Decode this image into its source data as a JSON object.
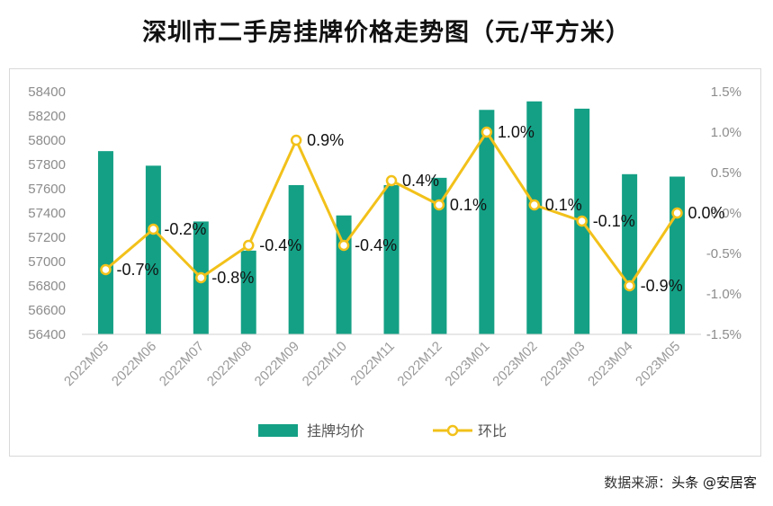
{
  "title": "深圳市二手房挂牌价格走势图（元/平方米）",
  "source": {
    "label": "数据来源：",
    "name": "头条 @安居客"
  },
  "chart_data": {
    "type": "bar+line",
    "categories": [
      "2022M05",
      "2022M06",
      "2022M07",
      "2022M08",
      "2022M09",
      "2022M10",
      "2022M11",
      "2022M12",
      "2023M01",
      "2023M02",
      "2023M03",
      "2023M04",
      "2023M05"
    ],
    "series": [
      {
        "name": "挂牌均价",
        "type": "bar",
        "axis": "left",
        "color": "#14a085",
        "values": [
          57910,
          57790,
          57330,
          57090,
          57630,
          57380,
          57630,
          57690,
          58250,
          58320,
          58260,
          57720,
          57700
        ]
      },
      {
        "name": "环比",
        "type": "line",
        "axis": "right",
        "color": "#f2c11a",
        "values": [
          -0.7,
          -0.2,
          -0.8,
          -0.4,
          0.9,
          -0.4,
          0.4,
          0.1,
          1.0,
          0.1,
          -0.1,
          -0.9,
          0.0
        ],
        "labels": [
          "-0.7%",
          "-0.2%",
          "-0.8%",
          "-0.4%",
          "0.9%",
          "-0.4%",
          "0.4%",
          "0.1%",
          "1.0%",
          "0.1%",
          "-0.1%",
          "-0.9%",
          "0.0%"
        ]
      }
    ],
    "y_left": {
      "min": 56400,
      "max": 58400,
      "step": 200,
      "ticks": [
        "56400",
        "56600",
        "56800",
        "57000",
        "57200",
        "57400",
        "57600",
        "57800",
        "58000",
        "58200",
        "58400"
      ]
    },
    "y_right": {
      "min": -1.5,
      "max": 1.5,
      "step": 0.5,
      "ticks": [
        "-1.5%",
        "-1.0%",
        "-0.5%",
        "0.0%",
        "0.5%",
        "1.0%",
        "1.5%"
      ]
    },
    "grid": false,
    "legend_position": "bottom"
  }
}
